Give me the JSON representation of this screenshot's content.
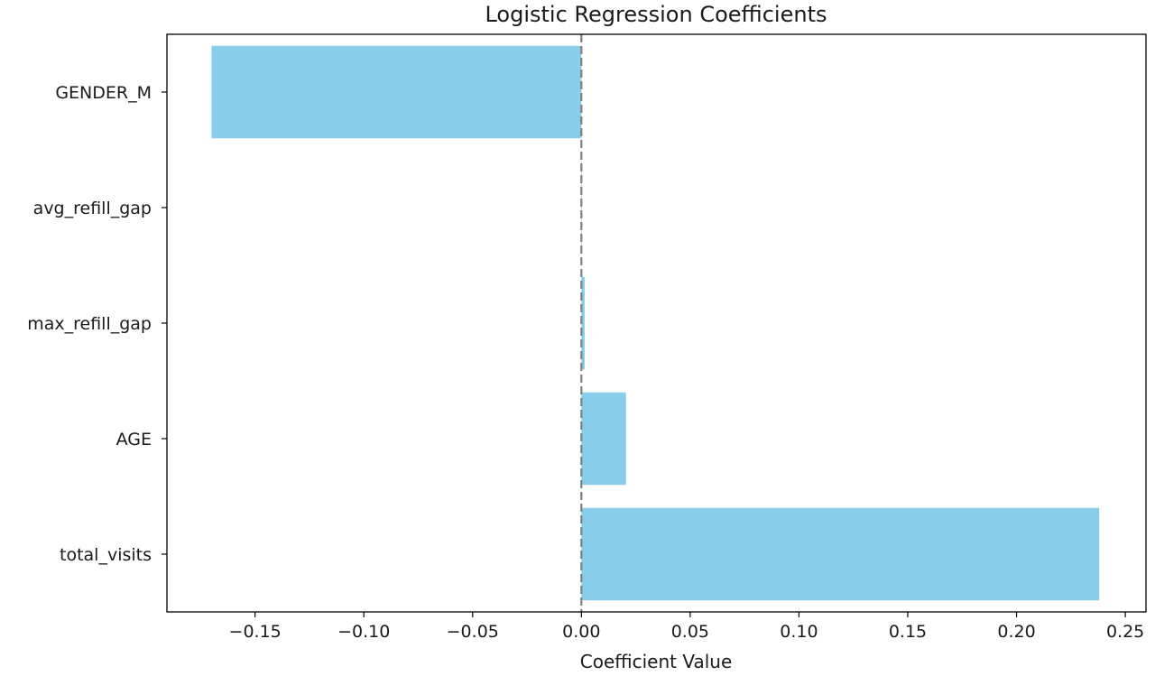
{
  "chart_data": {
    "type": "bar",
    "orientation": "horizontal",
    "title": "Logistic Regression Coefficients",
    "xlabel": "Coefficient Value",
    "ylabel": "",
    "categories": [
      "GENDER_M",
      "avg_refill_gap",
      "max_refill_gap",
      "AGE",
      "total_visits"
    ],
    "values": [
      -0.17,
      0.0003,
      0.0015,
      0.0205,
      0.238
    ],
    "xlim": [
      -0.1905,
      0.2595
    ],
    "xticks": [
      -0.15,
      -0.1,
      -0.05,
      0.0,
      0.05,
      0.1,
      0.15,
      0.2,
      0.25
    ],
    "xtick_labels": [
      "−0.15",
      "−0.10",
      "−0.05",
      "0.00",
      "0.05",
      "0.10",
      "0.15",
      "0.20",
      "0.25"
    ],
    "reference_line": {
      "x": 0,
      "style": "dashed",
      "color": "#808080"
    },
    "bar_color": "#87ceeb",
    "grid": false,
    "legend": "none"
  }
}
